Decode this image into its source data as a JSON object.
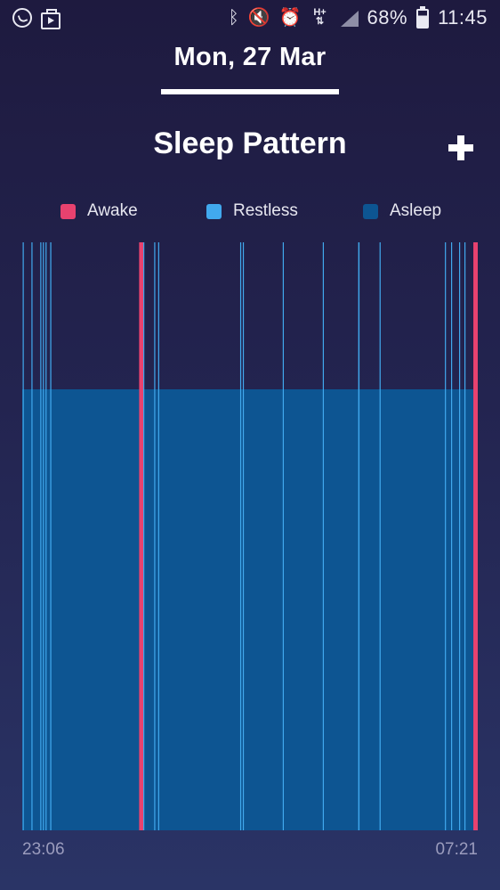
{
  "status_bar": {
    "left_icons": [
      "whatsapp-icon",
      "briefcase-play-icon"
    ],
    "right_icons": [
      "bluetooth-icon",
      "mute-icon",
      "alarm-icon",
      "network-hplus-icon",
      "signal-icon",
      "battery-icon"
    ],
    "network_type": "H+",
    "battery": "68%",
    "time": "11:45"
  },
  "header": {
    "date": "Mon, 27 Mar"
  },
  "page": {
    "title": "Sleep Pattern",
    "collapse_icon": "collapse-icon"
  },
  "colors": {
    "awake": "#e8426f",
    "restless": "#41a9ee",
    "asleep": "#0d5592",
    "background": "#1e1a3f"
  },
  "chart_data": {
    "type": "bar",
    "title": "Sleep Pattern",
    "x_start_label": "23:06",
    "x_end_label": "07:21",
    "legend": [
      {
        "name": "Awake",
        "color": "#e8426f"
      },
      {
        "name": "Restless",
        "color": "#41a9ee"
      },
      {
        "name": "Asleep",
        "color": "#0d5592"
      }
    ],
    "x_range_minutes": [
      0,
      495
    ],
    "level_fraction": {
      "awake": 1.0,
      "restless": 1.0,
      "asleep": 0.75
    },
    "segments": [
      {
        "stage": "asleep",
        "start": 0,
        "end": 495
      },
      {
        "stage": "restless",
        "start": 0.5,
        "end": 1.2
      },
      {
        "stage": "restless",
        "start": 10.0,
        "end": 10.7
      },
      {
        "stage": "restless",
        "start": 19.6,
        "end": 20.5
      },
      {
        "stage": "restless",
        "start": 22.4,
        "end": 23.3
      },
      {
        "stage": "restless",
        "start": 25.3,
        "end": 26.2
      },
      {
        "stage": "restless",
        "start": 30.4,
        "end": 31.6
      },
      {
        "stage": "awake",
        "start": 127.0,
        "end": 131.5
      },
      {
        "stage": "restless",
        "start": 131.5,
        "end": 132.5
      },
      {
        "stage": "restless",
        "start": 143.4,
        "end": 144.3
      },
      {
        "stage": "restless",
        "start": 147.7,
        "end": 148.6
      },
      {
        "stage": "restless",
        "start": 236.8,
        "end": 237.7
      },
      {
        "stage": "restless",
        "start": 239.7,
        "end": 240.6
      },
      {
        "stage": "restless",
        "start": 283.1,
        "end": 284.0
      },
      {
        "stage": "restless",
        "start": 326.6,
        "end": 327.5
      },
      {
        "stage": "restless",
        "start": 365.1,
        "end": 366.5
      },
      {
        "stage": "restless",
        "start": 388.3,
        "end": 389.2
      },
      {
        "stage": "restless",
        "start": 459.3,
        "end": 460.2
      },
      {
        "stage": "restless",
        "start": 466.0,
        "end": 467.0
      },
      {
        "stage": "restless",
        "start": 474.7,
        "end": 475.7
      },
      {
        "stage": "restless",
        "start": 480.5,
        "end": 481.5
      },
      {
        "stage": "awake",
        "start": 490.2,
        "end": 495.0
      }
    ]
  }
}
